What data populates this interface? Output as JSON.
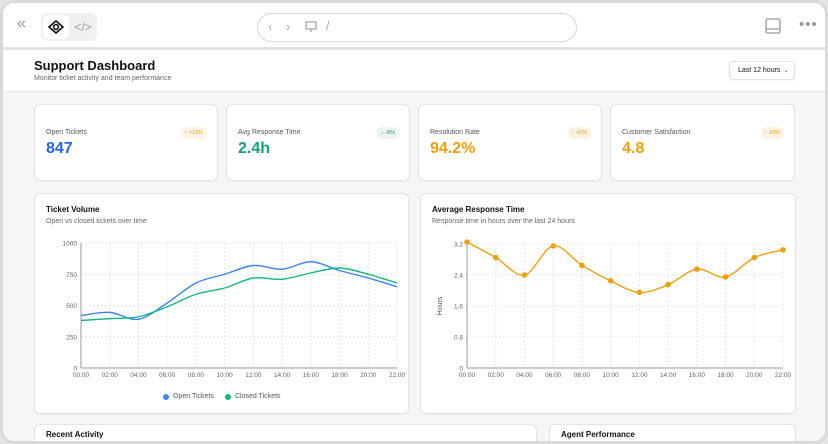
{
  "toolbar": {
    "url": "/",
    "icons": [
      "collapse-sidebar-icon",
      "eye-icon",
      "code-icon",
      "back-icon",
      "forward-icon",
      "monitor-icon",
      "panel-icon",
      "more-icon"
    ]
  },
  "header": {
    "title": "Support Dashboard",
    "subtitle": "Monitor ticket activity and team performance",
    "range": "Last 12 hours"
  },
  "stats": [
    {
      "label": "Open Tickets",
      "value": "847",
      "change": "↑ +12%",
      "color": "#2563eb",
      "badge_color": "#f59e0b",
      "badge_bg": "#fef3e2"
    },
    {
      "label": "Avg Response Time",
      "value": "2.4h",
      "change": "↓ -8%",
      "color": "#10a37f",
      "badge_color": "#10a37f",
      "badge_bg": "#eef2f0"
    },
    {
      "label": "Resolution Rate",
      "value": "94.2%",
      "change": "↑ +5%",
      "color": "#f59e0b",
      "badge_color": "#f59e0b",
      "badge_bg": "#fef3e2"
    },
    {
      "label": "Customer Satisfaction",
      "value": "4.8",
      "change": "↑ +2%",
      "color": "#f59e0b",
      "badge_color": "#f59e0b",
      "badge_bg": "#fef3e2"
    }
  ],
  "chart_data": [
    {
      "type": "line",
      "title": "Ticket Volume",
      "subtitle": "Open vs closed tickets over time",
      "x": [
        "00:00",
        "02:00",
        "04:00",
        "06:00",
        "08:00",
        "10:00",
        "12:00",
        "14:00",
        "16:00",
        "18:00",
        "20:00",
        "22:00"
      ],
      "ylim": [
        0,
        1000
      ],
      "yticks": [
        0,
        250,
        500,
        750,
        1000
      ],
      "grid": true,
      "legend": "bottom",
      "series": [
        {
          "name": "Open Tickets",
          "color": "#3b82f6",
          "values": [
            420,
            445,
            390,
            520,
            680,
            750,
            820,
            790,
            850,
            780,
            720,
            650
          ]
        },
        {
          "name": "Closed Tickets",
          "color": "#10b981",
          "values": [
            380,
            395,
            410,
            490,
            590,
            640,
            720,
            710,
            760,
            800,
            750,
            680
          ]
        }
      ]
    },
    {
      "type": "line",
      "title": "Average Response Time",
      "subtitle": "Response time in hours over the last 24 hours",
      "ylabel": "Hours",
      "x": [
        "00:00",
        "02:00",
        "04:00",
        "06:00",
        "08:00",
        "10:00",
        "12:00",
        "14:00",
        "16:00",
        "18:00",
        "20:00",
        "22:00"
      ],
      "ylim": [
        0,
        3.2
      ],
      "yticks": [
        0,
        0.8,
        1.6,
        2.4,
        3.2
      ],
      "grid": true,
      "series": [
        {
          "color": "#f59e0b",
          "values": [
            3.25,
            2.85,
            2.4,
            3.15,
            2.65,
            2.25,
            1.95,
            2.15,
            2.55,
            2.35,
            2.85,
            3.05
          ]
        }
      ]
    }
  ],
  "bottom": {
    "recent": "Recent Activity",
    "agents": "Agent Performance"
  }
}
